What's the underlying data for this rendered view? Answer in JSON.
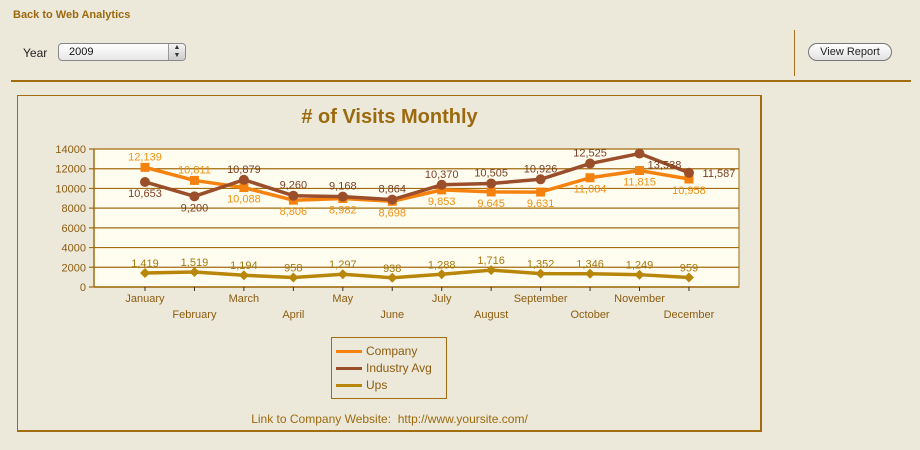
{
  "header": {
    "back_link": "Back to Web Analytics",
    "year_label": "Year",
    "year_value": "2009",
    "view_report": "View Report"
  },
  "footer": {
    "link_prefix": "Link to Company Website:",
    "link_url": "http://www.yoursite.com/"
  },
  "colors": {
    "accent": "#a26c10",
    "company": "#f5820f",
    "industry": "#9a4e2a",
    "ups": "#b8860b",
    "plot_bg": "#fffdf0"
  },
  "chart_data": {
    "type": "line",
    "title": "# of Visits Monthly",
    "xlabel": "",
    "ylabel": "",
    "ylim": [
      0,
      14000
    ],
    "yticks": [
      0,
      2000,
      4000,
      6000,
      8000,
      10000,
      12000,
      14000
    ],
    "grid": true,
    "legend_position": "bottom",
    "categories": [
      "January",
      "February",
      "March",
      "April",
      "May",
      "June",
      "July",
      "August",
      "September",
      "October",
      "November",
      "December"
    ],
    "series": [
      {
        "name": "Company",
        "values": [
          12139,
          10811,
          10088,
          8806,
          8982,
          8698,
          9853,
          9645,
          9631,
          11084,
          11815,
          10958
        ],
        "labels": [
          "12,139",
          "10,811",
          "10,088",
          "8,806",
          "8,982",
          "8,698",
          "9,853",
          "9,645",
          "9,631",
          "11,084",
          "11,815",
          "10,958"
        ]
      },
      {
        "name": "Industry Avg",
        "values": [
          10653,
          9200,
          10879,
          9260,
          9168,
          8864,
          10370,
          10505,
          10926,
          12525,
          13538,
          11587
        ],
        "labels": [
          "10,653",
          "9,200",
          "10,879",
          "9,260",
          "9,168",
          "8,864",
          "10,370",
          "10,505",
          "10,926",
          "12,525",
          "13,538",
          "11,587"
        ]
      },
      {
        "name": "Ups",
        "values": [
          1419,
          1519,
          1194,
          958,
          1297,
          938,
          1288,
          1716,
          1352,
          1346,
          1249,
          959
        ],
        "labels": [
          "1,419",
          "1,519",
          "1,194",
          "958",
          "1,297",
          "938",
          "1,288",
          "1,716",
          "1,352",
          "1,346",
          "1,249",
          "959"
        ]
      }
    ]
  }
}
